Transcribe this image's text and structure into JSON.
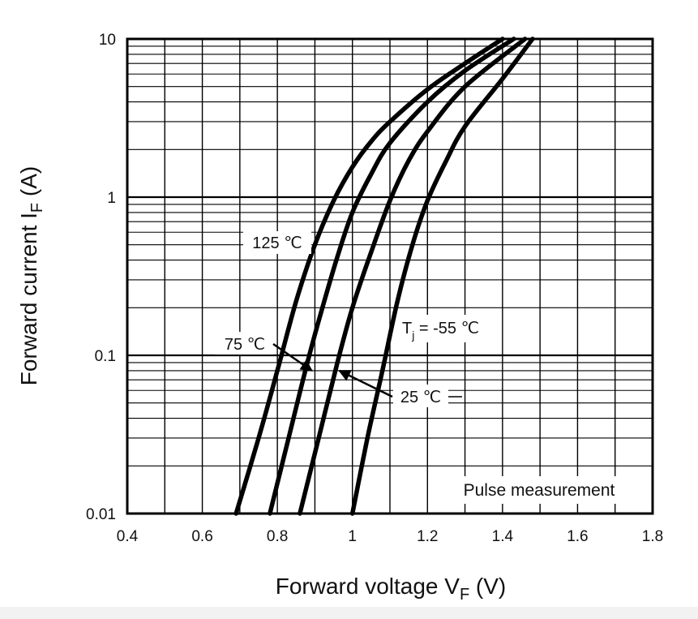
{
  "chart_data": {
    "type": "line",
    "x_scale": "linear",
    "y_scale": "log",
    "xlim": [
      0.4,
      1.8
    ],
    "ylim": [
      0.01,
      10
    ],
    "x_ticks": [
      "0.4",
      "0.6",
      "0.8",
      "1",
      "1.2",
      "1.4",
      "1.6",
      "1.8"
    ],
    "y_ticks": [
      "0.01",
      "0.1",
      "1",
      "10"
    ],
    "grid": true,
    "xlabel": {
      "main": "Forward voltage  V",
      "sub": "F",
      "unit": "  (V)"
    },
    "ylabel": {
      "main": "Forward current  I",
      "sub": "F",
      "unit": "  (A)"
    },
    "note": "Pulse measurement",
    "series": [
      {
        "name": "125 ℃",
        "points": [
          [
            0.69,
            0.01
          ],
          [
            0.75,
            0.03
          ],
          [
            0.8,
            0.08
          ],
          [
            0.85,
            0.22
          ],
          [
            0.9,
            0.5
          ],
          [
            0.95,
            0.95
          ],
          [
            1.0,
            1.55
          ],
          [
            1.05,
            2.25
          ],
          [
            1.1,
            3.0
          ],
          [
            1.2,
            4.8
          ],
          [
            1.3,
            7.0
          ],
          [
            1.4,
            10.0
          ]
        ]
      },
      {
        "name": "75 ℃",
        "points": [
          [
            0.78,
            0.01
          ],
          [
            0.83,
            0.03
          ],
          [
            0.88,
            0.09
          ],
          [
            0.92,
            0.2
          ],
          [
            0.96,
            0.42
          ],
          [
            1.0,
            0.8
          ],
          [
            1.05,
            1.4
          ],
          [
            1.1,
            2.2
          ],
          [
            1.2,
            4.0
          ],
          [
            1.3,
            6.3
          ],
          [
            1.43,
            10.0
          ]
        ]
      },
      {
        "name": "25 ℃",
        "points": [
          [
            0.86,
            0.01
          ],
          [
            0.91,
            0.03
          ],
          [
            0.96,
            0.09
          ],
          [
            1.0,
            0.2
          ],
          [
            1.05,
            0.45
          ],
          [
            1.1,
            0.95
          ],
          [
            1.15,
            1.7
          ],
          [
            1.2,
            2.6
          ],
          [
            1.3,
            5.0
          ],
          [
            1.46,
            10.0
          ]
        ]
      },
      {
        "name": "-55 ℃",
        "points": [
          [
            1.0,
            0.01
          ],
          [
            1.04,
            0.03
          ],
          [
            1.08,
            0.08
          ],
          [
            1.12,
            0.22
          ],
          [
            1.16,
            0.5
          ],
          [
            1.2,
            0.95
          ],
          [
            1.25,
            1.7
          ],
          [
            1.3,
            2.8
          ],
          [
            1.4,
            5.6
          ],
          [
            1.48,
            10.0
          ]
        ]
      }
    ],
    "labels": [
      {
        "text": "125 ℃"
      },
      {
        "text": "75 ℃"
      },
      {
        "text": "25 ℃"
      },
      {
        "prefix": "T",
        "sub": "j",
        "text": " = -55 ℃"
      }
    ]
  }
}
